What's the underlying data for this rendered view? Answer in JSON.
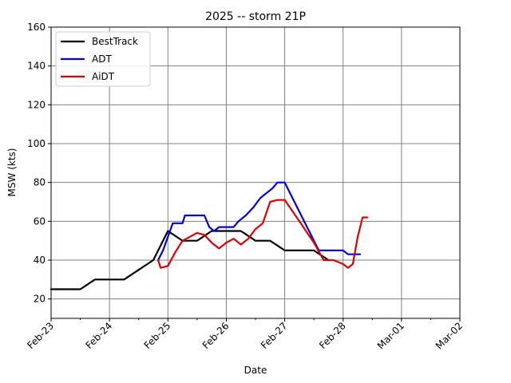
{
  "chart_data": {
    "type": "line",
    "title": "2025 -- storm 21P",
    "xlabel": "Date",
    "ylabel": "MSW (kts)",
    "ylim": [
      10,
      160
    ],
    "yticks": [
      20,
      40,
      60,
      80,
      100,
      120,
      140,
      160
    ],
    "xlim": [
      "2025-02-23",
      "2025-03-02"
    ],
    "xticks": [
      {
        "date": "2025-02-23",
        "label": "Feb-23"
      },
      {
        "date": "2025-02-24",
        "label": "Feb-24"
      },
      {
        "date": "2025-02-25",
        "label": "Feb-25"
      },
      {
        "date": "2025-02-26",
        "label": "Feb-26"
      },
      {
        "date": "2025-02-27",
        "label": "Feb-27"
      },
      {
        "date": "2025-02-28",
        "label": "Feb-28"
      },
      {
        "date": "2025-03-01",
        "label": "Mar-01"
      },
      {
        "date": "2025-03-02",
        "label": "Mar-02"
      }
    ],
    "minor_xticks": [
      "2025-02-23 12:00",
      "2025-02-24 12:00",
      "2025-02-25 12:00",
      "2025-02-26 12:00",
      "2025-02-27 12:00",
      "2025-02-28 12:00",
      "2025-03-01 12:00"
    ],
    "grid": true,
    "legend_position": "top-left",
    "series": [
      {
        "name": "BestTrack",
        "color": "#000000",
        "points": [
          [
            "2025-02-23 00:00",
            25
          ],
          [
            "2025-02-23 12:00",
            25
          ],
          [
            "2025-02-23 18:00",
            30
          ],
          [
            "2025-02-24 06:00",
            30
          ],
          [
            "2025-02-24 18:00",
            40
          ],
          [
            "2025-02-25 00:00",
            55
          ],
          [
            "2025-02-25 06:00",
            50
          ],
          [
            "2025-02-25 12:00",
            50
          ],
          [
            "2025-02-25 18:00",
            55
          ],
          [
            "2025-02-26 00:00",
            55
          ],
          [
            "2025-02-26 06:00",
            55
          ],
          [
            "2025-02-26 12:00",
            50
          ],
          [
            "2025-02-26 18:00",
            50
          ],
          [
            "2025-02-27 00:00",
            45
          ],
          [
            "2025-02-27 12:00",
            45
          ],
          [
            "2025-02-27 18:00",
            40
          ]
        ]
      },
      {
        "name": "ADT",
        "color": "#0000dd",
        "points": [
          [
            "2025-02-24 20:00",
            40
          ],
          [
            "2025-02-24 22:00",
            45
          ],
          [
            "2025-02-25 00:00",
            52
          ],
          [
            "2025-02-25 02:00",
            59
          ],
          [
            "2025-02-25 06:00",
            59
          ],
          [
            "2025-02-25 07:00",
            63
          ],
          [
            "2025-02-25 15:00",
            63
          ],
          [
            "2025-02-25 17:00",
            57
          ],
          [
            "2025-02-25 19:00",
            55
          ],
          [
            "2025-02-25 21:00",
            57
          ],
          [
            "2025-02-26 03:00",
            57
          ],
          [
            "2025-02-26 05:00",
            60
          ],
          [
            "2025-02-26 08:00",
            63
          ],
          [
            "2025-02-26 11:00",
            67
          ],
          [
            "2025-02-26 14:00",
            72
          ],
          [
            "2025-02-26 17:00",
            75
          ],
          [
            "2025-02-26 19:00",
            77
          ],
          [
            "2025-02-26 21:00",
            80
          ],
          [
            "2025-02-27 00:00",
            80
          ],
          [
            "2025-02-27 14:00",
            45
          ],
          [
            "2025-02-28 00:00",
            45
          ],
          [
            "2025-02-28 02:00",
            43
          ],
          [
            "2025-02-28 07:00",
            43
          ]
        ]
      },
      {
        "name": "AiDT",
        "color": "#dd0000",
        "points": [
          [
            "2025-02-24 20:00",
            40
          ],
          [
            "2025-02-24 21:00",
            36
          ],
          [
            "2025-02-25 00:00",
            37
          ],
          [
            "2025-02-25 03:00",
            44
          ],
          [
            "2025-02-25 06:00",
            50
          ],
          [
            "2025-02-25 09:00",
            52
          ],
          [
            "2025-02-25 12:00",
            54
          ],
          [
            "2025-02-25 15:00",
            53
          ],
          [
            "2025-02-25 18:00",
            49
          ],
          [
            "2025-02-25 21:00",
            46
          ],
          [
            "2025-02-26 00:00",
            49
          ],
          [
            "2025-02-26 03:00",
            51
          ],
          [
            "2025-02-26 06:00",
            48
          ],
          [
            "2025-02-26 09:00",
            51
          ],
          [
            "2025-02-26 12:00",
            56
          ],
          [
            "2025-02-26 15:00",
            59
          ],
          [
            "2025-02-26 18:00",
            70
          ],
          [
            "2025-02-26 21:00",
            71
          ],
          [
            "2025-02-27 00:00",
            71
          ],
          [
            "2025-02-27 06:00",
            60
          ],
          [
            "2025-02-27 12:00",
            49
          ],
          [
            "2025-02-27 16:00",
            40
          ],
          [
            "2025-02-27 20:00",
            40
          ],
          [
            "2025-02-28 00:00",
            38
          ],
          [
            "2025-02-28 02:00",
            36
          ],
          [
            "2025-02-28 04:00",
            38
          ],
          [
            "2025-02-28 06:00",
            52
          ],
          [
            "2025-02-28 08:00",
            62
          ],
          [
            "2025-02-28 10:00",
            62
          ]
        ]
      }
    ]
  }
}
